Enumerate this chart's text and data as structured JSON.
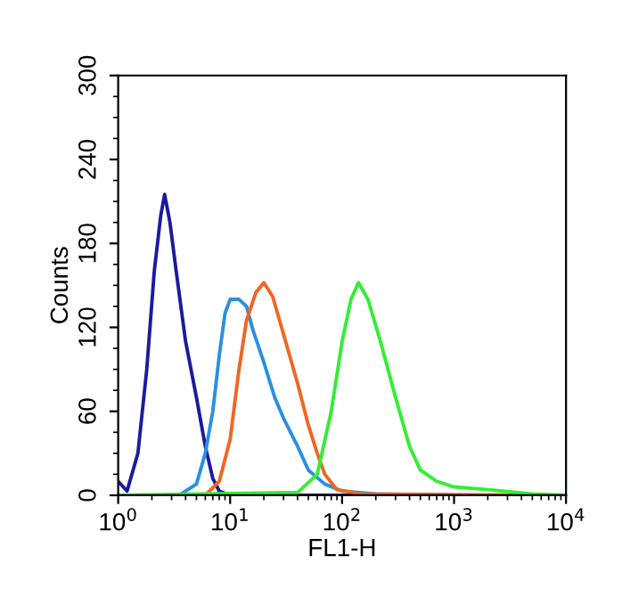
{
  "chart_data": {
    "type": "line",
    "xlabel": "FL1-H",
    "ylabel": "Counts",
    "log": "x",
    "xlim": [
      1,
      10000
    ],
    "xticks": [
      {
        "value": 1,
        "label": "10$^{0}$"
      },
      {
        "value": 10,
        "label": "10$^{1}$"
      },
      {
        "value": 100,
        "label": "10$^{2}$"
      },
      {
        "value": 1000,
        "label": "10$^{3}$"
      },
      {
        "value": 10000,
        "label": "10$^{4}$"
      }
    ],
    "ylim": [
      0,
      300
    ],
    "yticks": [
      0,
      60,
      120,
      180,
      240,
      300
    ],
    "grid": false,
    "marker": "none",
    "line_style": "solid",
    "series": [
      {
        "color": "#1a1aa0",
        "x": [
          1,
          1.2,
          1.5,
          1.8,
          2.1,
          2.4,
          2.6,
          2.9,
          3.3,
          4,
          5,
          6,
          7,
          8,
          10,
          100,
          10000
        ],
        "values": [
          10,
          3,
          30,
          90,
          160,
          200,
          215,
          195,
          160,
          110,
          70,
          35,
          12,
          3,
          0,
          0,
          0
        ]
      },
      {
        "color": "#2a8fe0",
        "x": [
          3.5,
          5,
          6,
          7,
          8,
          9,
          10,
          12,
          14,
          16,
          20,
          25,
          30,
          40,
          50,
          70,
          100,
          200,
          1000
        ],
        "values": [
          0,
          8,
          30,
          60,
          100,
          130,
          140,
          140,
          135,
          118,
          95,
          70,
          55,
          35,
          18,
          8,
          3,
          1,
          0
        ]
      },
      {
        "color": "#f26522",
        "x": [
          6,
          8,
          10,
          12,
          14,
          17,
          20,
          24,
          30,
          40,
          50,
          60,
          70,
          90,
          150,
          10000
        ],
        "values": [
          0,
          10,
          40,
          90,
          125,
          145,
          152,
          142,
          115,
          80,
          50,
          30,
          15,
          4,
          1,
          0
        ]
      },
      {
        "color": "#33ee33",
        "x": [
          1,
          40,
          60,
          80,
          100,
          120,
          140,
          170,
          220,
          300,
          400,
          500,
          700,
          1000,
          2000,
          5000,
          10000
        ],
        "values": [
          0,
          2,
          15,
          60,
          110,
          140,
          152,
          140,
          110,
          70,
          35,
          18,
          10,
          6,
          4,
          1,
          0
        ]
      }
    ]
  }
}
